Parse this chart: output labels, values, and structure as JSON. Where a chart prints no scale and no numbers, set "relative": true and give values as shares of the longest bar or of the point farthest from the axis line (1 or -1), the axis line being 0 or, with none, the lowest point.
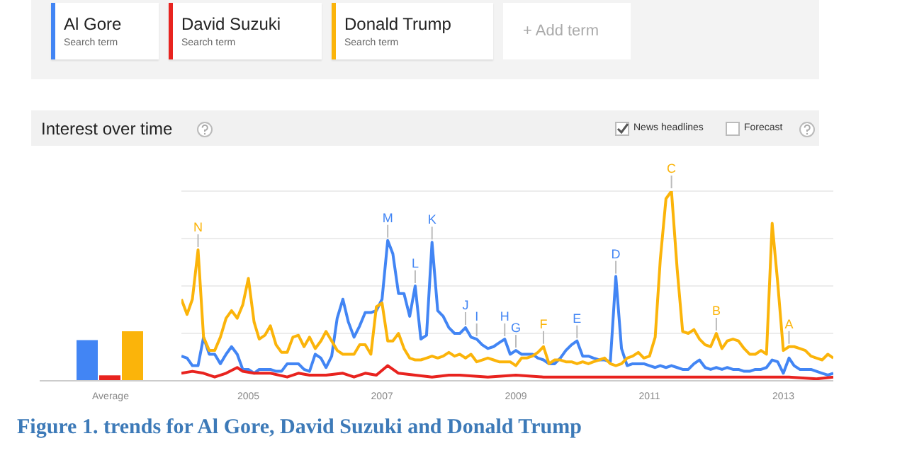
{
  "chart_data": [
    {
      "type": "bar",
      "relative": true,
      "categories": [
        "Average"
      ],
      "series": [
        {
          "color": "#4285f4",
          "values": [
            0.82
          ]
        },
        {
          "color": "#e8231f",
          "values": [
            0.11
          ]
        },
        {
          "color": "#fbb40a",
          "values": [
            1
          ]
        }
      ]
    },
    {
      "type": "line",
      "title": "Interest over time",
      "legend": "top left",
      "grid": "y",
      "marker": "none",
      "line_style": "solid",
      "relative": true,
      "xlim": [
        "2004-01",
        "2013-10"
      ],
      "xticks": [
        "2005",
        "2007",
        "2009",
        "2011",
        "2013"
      ],
      "x": [
        "2004-01",
        "2004-02",
        "2004-03",
        "2004-04",
        "2004-05",
        "2004-06",
        "2004-07",
        "2004-08",
        "2004-09",
        "2004-10",
        "2004-11",
        "2004-12",
        "2005-01",
        "2005-02",
        "2005-03",
        "2005-04",
        "2005-05",
        "2005-06",
        "2005-07",
        "2005-08",
        "2005-09",
        "2005-10",
        "2005-11",
        "2005-12",
        "2006-01",
        "2006-02",
        "2006-03",
        "2006-04",
        "2006-05",
        "2006-06",
        "2006-07",
        "2006-08",
        "2006-09",
        "2006-10",
        "2006-11",
        "2006-12",
        "2007-01",
        "2007-02",
        "2007-03",
        "2007-04",
        "2007-05",
        "2007-06",
        "2007-07",
        "2007-08",
        "2007-09",
        "2007-10",
        "2007-11",
        "2007-12",
        "2008-01",
        "2008-02",
        "2008-03",
        "2008-04",
        "2008-05",
        "2008-06",
        "2008-07",
        "2008-08",
        "2008-09",
        "2008-10",
        "2008-11",
        "2008-12",
        "2009-01",
        "2009-02",
        "2009-03",
        "2009-04",
        "2009-05",
        "2009-06",
        "2009-07",
        "2009-08",
        "2009-09",
        "2009-10",
        "2009-11",
        "2009-12",
        "2010-01",
        "2010-02",
        "2010-03",
        "2010-04",
        "2010-05",
        "2010-06",
        "2010-07",
        "2010-08",
        "2010-09",
        "2010-10",
        "2010-11",
        "2010-12",
        "2011-01",
        "2011-02",
        "2011-03",
        "2011-04",
        "2011-05",
        "2011-06",
        "2011-07",
        "2011-08",
        "2011-09",
        "2011-10",
        "2011-11",
        "2011-12",
        "2012-01",
        "2012-02",
        "2012-03",
        "2012-04",
        "2012-05",
        "2012-06",
        "2012-07",
        "2012-08",
        "2012-09",
        "2012-10",
        "2012-11",
        "2012-12",
        "2013-01",
        "2013-02",
        "2013-03",
        "2013-04",
        "2013-05",
        "2013-06",
        "2013-07",
        "2013-08",
        "2013-09",
        "2013-10"
      ],
      "series": [
        {
          "name": "Al Gore",
          "color": "#4285f4",
          "values": [
            0.13,
            0.12,
            0.08,
            0.08,
            0.23,
            0.14,
            0.14,
            0.09,
            0.14,
            0.18,
            0.14,
            0.06,
            0.06,
            0.04,
            0.06,
            0.06,
            0.06,
            0.05,
            0.05,
            0.09,
            0.09,
            0.09,
            0.06,
            0.05,
            0.14,
            0.12,
            0.07,
            0.13,
            0.33,
            0.43,
            0.31,
            0.23,
            0.29,
            0.36,
            0.36,
            0.37,
            0.43,
            0.74,
            0.67,
            0.46,
            0.46,
            0.34,
            0.5,
            0.22,
            0.24,
            0.73,
            0.37,
            0.34,
            0.28,
            0.25,
            0.25,
            0.28,
            0.23,
            0.22,
            0.19,
            0.17,
            0.18,
            0.2,
            0.22,
            0.14,
            0.16,
            0.14,
            0.14,
            0.14,
            0.12,
            0.11,
            0.09,
            0.09,
            0.12,
            0.16,
            0.19,
            0.21,
            0.13,
            0.13,
            0.12,
            0.11,
            0.11,
            0.1,
            0.55,
            0.17,
            0.08,
            0.09,
            0.09,
            0.09,
            0.08,
            0.07,
            0.08,
            0.07,
            0.08,
            0.07,
            0.06,
            0.06,
            0.09,
            0.11,
            0.07,
            0.06,
            0.07,
            0.06,
            0.07,
            0.06,
            0.06,
            0.05,
            0.05,
            0.06,
            0.06,
            0.07,
            0.11,
            0.1,
            0.04,
            0.12,
            0.08,
            0.06,
            0.06,
            0.06,
            0.05,
            0.04,
            0.03,
            0.04
          ]
        },
        {
          "name": "David Suzuki",
          "color": "#e8231f",
          "x": [
            "2004-01",
            "2004-03",
            "2004-05",
            "2004-07",
            "2004-09",
            "2004-11",
            "2004-12",
            "2005-02",
            "2005-05",
            "2005-08",
            "2005-10",
            "2005-12",
            "2006-03",
            "2006-06",
            "2006-08",
            "2006-10",
            "2006-12",
            "2007-02",
            "2007-04",
            "2007-07",
            "2007-10",
            "2008-01",
            "2008-03",
            "2008-08",
            "2009-01",
            "2009-06",
            "2009-11",
            "2010-04",
            "2010-09",
            "2011-02",
            "2011-07",
            "2011-12",
            "2012-05",
            "2012-10",
            "2013-02",
            "2013-07",
            "2013-10"
          ],
          "values": [
            0.04,
            0.05,
            0.04,
            0.02,
            0.04,
            0.07,
            0.05,
            0.04,
            0.04,
            0.02,
            0.04,
            0.03,
            0.03,
            0.04,
            0.02,
            0.04,
            0.03,
            0.08,
            0.04,
            0.03,
            0.02,
            0.03,
            0.03,
            0.02,
            0.03,
            0.02,
            0.02,
            0.02,
            0.02,
            0.02,
            0.02,
            0.02,
            0.02,
            0.02,
            0.02,
            0.01,
            0.02
          ]
        },
        {
          "name": "Donald Trump",
          "color": "#fbb40a",
          "values": [
            0.43,
            0.35,
            0.43,
            0.69,
            0.23,
            0.16,
            0.16,
            0.23,
            0.33,
            0.37,
            0.33,
            0.4,
            0.54,
            0.31,
            0.22,
            0.24,
            0.29,
            0.19,
            0.15,
            0.15,
            0.23,
            0.24,
            0.18,
            0.23,
            0.17,
            0.21,
            0.26,
            0.21,
            0.16,
            0.14,
            0.14,
            0.14,
            0.19,
            0.19,
            0.14,
            0.39,
            0.41,
            0.21,
            0.21,
            0.25,
            0.17,
            0.12,
            0.11,
            0.11,
            0.12,
            0.13,
            0.12,
            0.13,
            0.15,
            0.13,
            0.14,
            0.12,
            0.14,
            0.1,
            0.11,
            0.12,
            0.11,
            0.1,
            0.1,
            0.1,
            0.08,
            0.12,
            0.12,
            0.13,
            0.15,
            0.18,
            0.09,
            0.11,
            0.11,
            0.1,
            0.1,
            0.09,
            0.1,
            0.09,
            0.1,
            0.11,
            0.12,
            0.09,
            0.08,
            0.09,
            0.12,
            0.13,
            0.15,
            0.12,
            0.13,
            0.23,
            0.64,
            0.96,
            1,
            0.59,
            0.26,
            0.25,
            0.27,
            0.22,
            0.19,
            0.18,
            0.25,
            0.17,
            0.21,
            0.22,
            0.21,
            0.17,
            0.14,
            0.14,
            0.16,
            0.14,
            0.83,
            0.52,
            0.16,
            0.18,
            0.18,
            0.17,
            0.16,
            0.13,
            0.12,
            0.11,
            0.14,
            0.12
          ]
        }
      ],
      "annotations": [
        "Search term",
        "Search term",
        "Search term",
        "+ Add term",
        "News headlines",
        "Forecast",
        "Figure 1. trends for Al Gore, David Suzuki and Donald Trump",
        {
          "text": "N",
          "x": "2004-04",
          "y": 0.69
        },
        {
          "text": "M",
          "x": "2007-02",
          "y": 0.74
        },
        {
          "text": "L",
          "x": "2007-07",
          "y": 0.5
        },
        {
          "text": "K",
          "x": "2007-10",
          "y": 0.73
        },
        {
          "text": "J",
          "x": "2008-04",
          "y": 0.28
        },
        {
          "text": "I",
          "x": "2008-06",
          "y": 0.22
        },
        {
          "text": "H",
          "x": "2008-11",
          "y": 0.22
        },
        {
          "text": "G",
          "x": "2009-01",
          "y": 0.16
        },
        {
          "text": "F",
          "x": "2009-06",
          "y": 0.18
        },
        {
          "text": "E",
          "x": "2009-12",
          "y": 0.21
        },
        {
          "text": "D",
          "x": "2010-07",
          "y": 0.55
        },
        {
          "text": "C",
          "x": "2011-05",
          "y": 1
        },
        {
          "text": "B",
          "x": "2012-01",
          "y": 0.25
        },
        {
          "text": "A",
          "x": "2013-02",
          "y": 0.18
        }
      ]
    }
  ]
}
